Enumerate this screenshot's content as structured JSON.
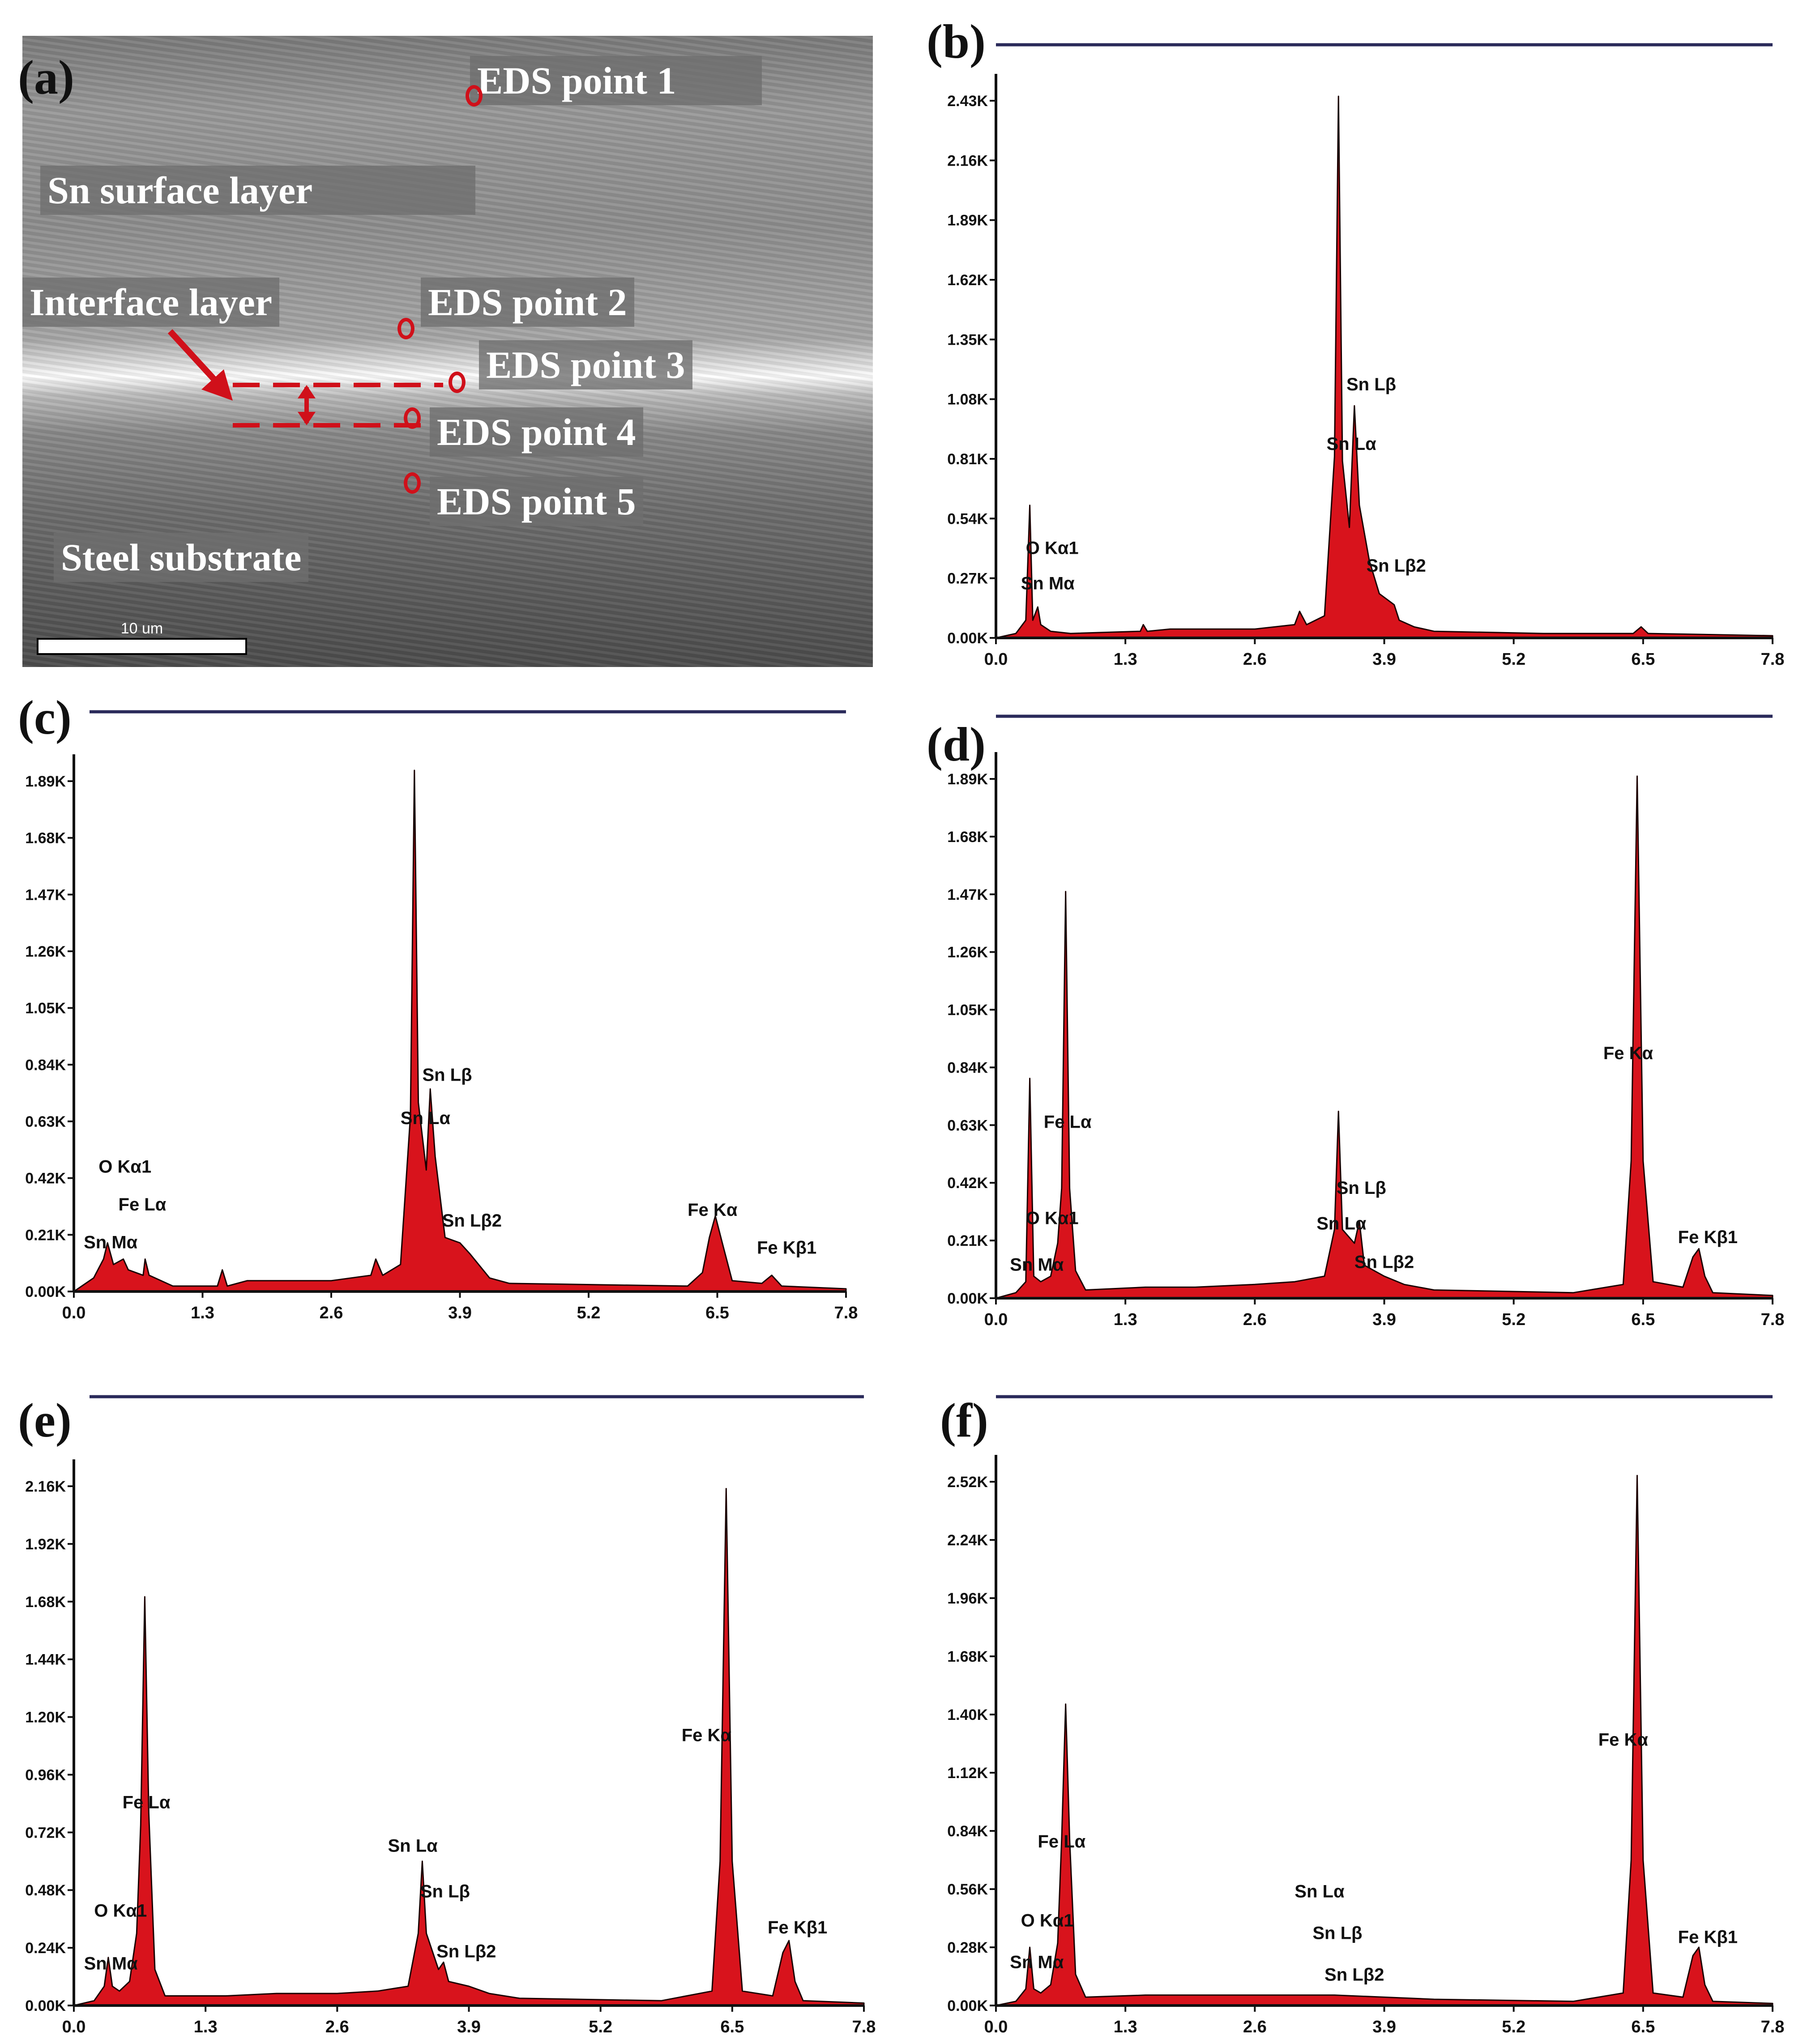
{
  "panels": {
    "a": {
      "letter": "(a)"
    },
    "b": {
      "letter": "(b)"
    },
    "c": {
      "letter": "(c)"
    },
    "d": {
      "letter": "(d)"
    },
    "e": {
      "letter": "(e)"
    },
    "f": {
      "letter": "(f)"
    }
  },
  "sem": {
    "labels": {
      "sn_surface": "Sn surface layer",
      "interface": "Interface layer",
      "steel": "Steel substrate",
      "p1": "EDS point 1",
      "p2": "EDS point 2",
      "p3": "EDS point 3",
      "p4": "EDS point 4",
      "p5": "EDS point 5"
    },
    "scale_bar": "10 um"
  },
  "colors": {
    "fill": "#d8131c",
    "stroke": "#1a0000",
    "peak_marker": "#f4b6b6",
    "rule": "#2a2a5a"
  },
  "chart_data": [
    {
      "panel": "b",
      "type": "area",
      "x_ticks": [
        "0.0",
        "1.3",
        "2.6",
        "3.9",
        "5.2",
        "6.5",
        "7.8"
      ],
      "y_ticks": [
        "0.00K",
        "0.27K",
        "0.54K",
        "0.81K",
        "1.08K",
        "1.35K",
        "1.62K",
        "1.89K",
        "2.16K",
        "2.43K"
      ],
      "xlim": [
        0,
        7.8
      ],
      "ylim": [
        0,
        2.43
      ],
      "spectrum": [
        [
          0,
          0
        ],
        [
          0.2,
          0.02
        ],
        [
          0.3,
          0.08
        ],
        [
          0.34,
          0.6
        ],
        [
          0.37,
          0.08
        ],
        [
          0.42,
          0.14
        ],
        [
          0.45,
          0.06
        ],
        [
          0.55,
          0.03
        ],
        [
          0.75,
          0.02
        ],
        [
          1.45,
          0.03
        ],
        [
          1.48,
          0.06
        ],
        [
          1.52,
          0.03
        ],
        [
          1.75,
          0.04
        ],
        [
          2.6,
          0.04
        ],
        [
          3.0,
          0.06
        ],
        [
          3.05,
          0.12
        ],
        [
          3.12,
          0.06
        ],
        [
          3.3,
          0.1
        ],
        [
          3.4,
          0.82
        ],
        [
          3.44,
          2.45
        ],
        [
          3.48,
          0.8
        ],
        [
          3.55,
          0.5
        ],
        [
          3.6,
          1.05
        ],
        [
          3.65,
          0.6
        ],
        [
          3.75,
          0.35
        ],
        [
          3.85,
          0.2
        ],
        [
          4.0,
          0.15
        ],
        [
          4.05,
          0.08
        ],
        [
          4.2,
          0.05
        ],
        [
          4.4,
          0.03
        ],
        [
          5.5,
          0.02
        ],
        [
          6.4,
          0.02
        ],
        [
          6.48,
          0.05
        ],
        [
          6.55,
          0.02
        ],
        [
          7.8,
          0.01
        ]
      ],
      "peak_labels": [
        {
          "text": "O  Kα1",
          "x": 0.3,
          "y": 0.38
        },
        {
          "text": "Sn Mα",
          "x": 0.25,
          "y": 0.22
        },
        {
          "text": "Sn Lβ",
          "x": 3.52,
          "y": 1.12
        },
        {
          "text": "Sn Lα",
          "x": 3.32,
          "y": 0.85
        },
        {
          "text": "Sn Lβ2",
          "x": 3.72,
          "y": 0.3
        }
      ]
    },
    {
      "panel": "c",
      "type": "area",
      "x_ticks": [
        "0.0",
        "1.3",
        "2.6",
        "3.9",
        "5.2",
        "6.5",
        "7.8"
      ],
      "y_ticks": [
        "0.00K",
        "0.21K",
        "0.42K",
        "0.63K",
        "0.84K",
        "1.05K",
        "1.26K",
        "1.47K",
        "1.68K",
        "1.89K"
      ],
      "xlim": [
        0,
        7.8
      ],
      "ylim": [
        0,
        1.89
      ],
      "spectrum": [
        [
          0,
          0
        ],
        [
          0.2,
          0.05
        ],
        [
          0.3,
          0.12
        ],
        [
          0.34,
          0.18
        ],
        [
          0.4,
          0.1
        ],
        [
          0.5,
          0.12
        ],
        [
          0.55,
          0.08
        ],
        [
          0.7,
          0.06
        ],
        [
          0.72,
          0.12
        ],
        [
          0.76,
          0.06
        ],
        [
          1.0,
          0.02
        ],
        [
          1.45,
          0.02
        ],
        [
          1.5,
          0.08
        ],
        [
          1.55,
          0.02
        ],
        [
          1.75,
          0.04
        ],
        [
          2.6,
          0.04
        ],
        [
          3.0,
          0.06
        ],
        [
          3.05,
          0.12
        ],
        [
          3.12,
          0.06
        ],
        [
          3.3,
          0.1
        ],
        [
          3.4,
          0.65
        ],
        [
          3.44,
          1.93
        ],
        [
          3.48,
          0.7
        ],
        [
          3.56,
          0.45
        ],
        [
          3.6,
          0.75
        ],
        [
          3.65,
          0.5
        ],
        [
          3.75,
          0.2
        ],
        [
          3.9,
          0.18
        ],
        [
          4.0,
          0.14
        ],
        [
          4.2,
          0.05
        ],
        [
          4.4,
          0.03
        ],
        [
          6.2,
          0.02
        ],
        [
          6.35,
          0.07
        ],
        [
          6.42,
          0.2
        ],
        [
          6.48,
          0.28
        ],
        [
          6.55,
          0.18
        ],
        [
          6.65,
          0.04
        ],
        [
          6.95,
          0.03
        ],
        [
          7.05,
          0.06
        ],
        [
          7.15,
          0.02
        ],
        [
          7.8,
          0.01
        ]
      ],
      "peak_labels": [
        {
          "text": "O  Kα1",
          "x": 0.25,
          "y": 0.44
        },
        {
          "text": "Fe Lα",
          "x": 0.45,
          "y": 0.3
        },
        {
          "text": "Sn Mα",
          "x": 0.1,
          "y": 0.16
        },
        {
          "text": "Sn Lβ",
          "x": 3.52,
          "y": 0.78
        },
        {
          "text": "Sn Lα",
          "x": 3.3,
          "y": 0.62
        },
        {
          "text": "Sn Lβ2",
          "x": 3.72,
          "y": 0.24
        },
        {
          "text": "Fe Kα",
          "x": 6.2,
          "y": 0.28
        },
        {
          "text": "Fe Kβ1",
          "x": 6.9,
          "y": 0.14
        }
      ]
    },
    {
      "panel": "d",
      "type": "area",
      "x_ticks": [
        "0.0",
        "1.3",
        "2.6",
        "3.9",
        "5.2",
        "6.5",
        "7.8"
      ],
      "y_ticks": [
        "0.00K",
        "0.21K",
        "0.42K",
        "0.63K",
        "0.84K",
        "1.05K",
        "1.26K",
        "1.47K",
        "1.68K",
        "1.89K"
      ],
      "xlim": [
        0,
        7.8
      ],
      "ylim": [
        0,
        1.89
      ],
      "spectrum": [
        [
          0,
          0
        ],
        [
          0.2,
          0.02
        ],
        [
          0.3,
          0.06
        ],
        [
          0.34,
          0.8
        ],
        [
          0.38,
          0.08
        ],
        [
          0.45,
          0.06
        ],
        [
          0.55,
          0.08
        ],
        [
          0.62,
          0.2
        ],
        [
          0.66,
          0.4
        ],
        [
          0.7,
          1.48
        ],
        [
          0.74,
          0.4
        ],
        [
          0.8,
          0.1
        ],
        [
          0.9,
          0.03
        ],
        [
          1.5,
          0.04
        ],
        [
          2.0,
          0.04
        ],
        [
          2.6,
          0.05
        ],
        [
          3.0,
          0.06
        ],
        [
          3.3,
          0.08
        ],
        [
          3.4,
          0.25
        ],
        [
          3.44,
          0.68
        ],
        [
          3.48,
          0.25
        ],
        [
          3.6,
          0.2
        ],
        [
          3.65,
          0.28
        ],
        [
          3.7,
          0.12
        ],
        [
          3.9,
          0.08
        ],
        [
          4.1,
          0.05
        ],
        [
          4.4,
          0.03
        ],
        [
          5.8,
          0.02
        ],
        [
          6.3,
          0.05
        ],
        [
          6.38,
          0.5
        ],
        [
          6.44,
          1.9
        ],
        [
          6.5,
          0.5
        ],
        [
          6.6,
          0.06
        ],
        [
          6.9,
          0.04
        ],
        [
          7.0,
          0.15
        ],
        [
          7.06,
          0.18
        ],
        [
          7.12,
          0.08
        ],
        [
          7.2,
          0.02
        ],
        [
          7.8,
          0.01
        ]
      ],
      "peak_labels": [
        {
          "text": "Fe Lα",
          "x": 0.48,
          "y": 0.62
        },
        {
          "text": "O  Kα1",
          "x": 0.3,
          "y": 0.27
        },
        {
          "text": "Sn Mα",
          "x": 0.14,
          "y": 0.1
        },
        {
          "text": "Sn Lβ",
          "x": 3.42,
          "y": 0.38
        },
        {
          "text": "Sn Lα",
          "x": 3.22,
          "y": 0.25
        },
        {
          "text": "Sn Lβ2",
          "x": 3.6,
          "y": 0.11
        },
        {
          "text": "Fe Kα",
          "x": 6.1,
          "y": 0.87
        },
        {
          "text": "Fe Kβ1",
          "x": 6.85,
          "y": 0.2
        }
      ]
    },
    {
      "panel": "e",
      "type": "area",
      "x_ticks": [
        "0.0",
        "1.3",
        "2.6",
        "3.9",
        "5.2",
        "6.5",
        "7.8"
      ],
      "y_ticks": [
        "0.00K",
        "0.24K",
        "0.48K",
        "0.72K",
        "0.96K",
        "1.20K",
        "1.44K",
        "1.68K",
        "1.92K",
        "2.16K"
      ],
      "xlim": [
        0,
        7.8
      ],
      "ylim": [
        0,
        2.16
      ],
      "spectrum": [
        [
          0,
          0
        ],
        [
          0.2,
          0.02
        ],
        [
          0.3,
          0.08
        ],
        [
          0.34,
          0.2
        ],
        [
          0.38,
          0.08
        ],
        [
          0.45,
          0.06
        ],
        [
          0.55,
          0.1
        ],
        [
          0.62,
          0.3
        ],
        [
          0.66,
          0.75
        ],
        [
          0.7,
          1.7
        ],
        [
          0.74,
          0.8
        ],
        [
          0.8,
          0.15
        ],
        [
          0.9,
          0.04
        ],
        [
          1.5,
          0.04
        ],
        [
          2.0,
          0.05
        ],
        [
          2.6,
          0.05
        ],
        [
          3.0,
          0.06
        ],
        [
          3.3,
          0.08
        ],
        [
          3.4,
          0.3
        ],
        [
          3.44,
          0.6
        ],
        [
          3.48,
          0.3
        ],
        [
          3.6,
          0.15
        ],
        [
          3.65,
          0.18
        ],
        [
          3.7,
          0.1
        ],
        [
          3.9,
          0.08
        ],
        [
          4.1,
          0.05
        ],
        [
          4.4,
          0.03
        ],
        [
          5.8,
          0.02
        ],
        [
          6.3,
          0.06
        ],
        [
          6.38,
          0.6
        ],
        [
          6.44,
          2.15
        ],
        [
          6.5,
          0.6
        ],
        [
          6.6,
          0.06
        ],
        [
          6.9,
          0.04
        ],
        [
          7.0,
          0.22
        ],
        [
          7.06,
          0.27
        ],
        [
          7.12,
          0.1
        ],
        [
          7.2,
          0.02
        ],
        [
          7.8,
          0.01
        ]
      ],
      "peak_labels": [
        {
          "text": "Fe Lα",
          "x": 0.48,
          "y": 0.82
        },
        {
          "text": "O  Kα1",
          "x": 0.2,
          "y": 0.37
        },
        {
          "text": "Sn Mα",
          "x": 0.1,
          "y": 0.15
        },
        {
          "text": "Sn Lα",
          "x": 3.1,
          "y": 0.64
        },
        {
          "text": "Sn Lβ",
          "x": 3.42,
          "y": 0.45
        },
        {
          "text": "Sn Lβ2",
          "x": 3.58,
          "y": 0.2
        },
        {
          "text": "Fe Kα",
          "x": 6.0,
          "y": 1.1
        },
        {
          "text": "Fe Kβ1",
          "x": 6.85,
          "y": 0.3
        }
      ]
    },
    {
      "panel": "f",
      "type": "area",
      "x_ticks": [
        "0.0",
        "1.3",
        "2.6",
        "3.9",
        "5.2",
        "6.5",
        "7.8"
      ],
      "y_ticks": [
        "0.00K",
        "0.28K",
        "0.56K",
        "0.84K",
        "1.12K",
        "1.40K",
        "1.68K",
        "1.96K",
        "2.24K",
        "2.52K"
      ],
      "xlim": [
        0,
        7.8
      ],
      "ylim": [
        0,
        2.52
      ],
      "spectrum": [
        [
          0,
          0
        ],
        [
          0.2,
          0.02
        ],
        [
          0.3,
          0.08
        ],
        [
          0.34,
          0.28
        ],
        [
          0.38,
          0.08
        ],
        [
          0.45,
          0.06
        ],
        [
          0.55,
          0.1
        ],
        [
          0.62,
          0.3
        ],
        [
          0.66,
          0.8
        ],
        [
          0.7,
          1.45
        ],
        [
          0.74,
          0.8
        ],
        [
          0.8,
          0.15
        ],
        [
          0.9,
          0.04
        ],
        [
          1.5,
          0.05
        ],
        [
          2.5,
          0.05
        ],
        [
          3.4,
          0.05
        ],
        [
          3.9,
          0.04
        ],
        [
          4.4,
          0.03
        ],
        [
          5.8,
          0.02
        ],
        [
          6.3,
          0.06
        ],
        [
          6.38,
          0.7
        ],
        [
          6.44,
          2.55
        ],
        [
          6.5,
          0.7
        ],
        [
          6.6,
          0.06
        ],
        [
          6.9,
          0.04
        ],
        [
          7.0,
          0.24
        ],
        [
          7.06,
          0.28
        ],
        [
          7.12,
          0.1
        ],
        [
          7.2,
          0.02
        ],
        [
          7.8,
          0.01
        ]
      ],
      "peak_labels": [
        {
          "text": "Fe Lα",
          "x": 0.42,
          "y": 0.76
        },
        {
          "text": "O  Kα1",
          "x": 0.25,
          "y": 0.38
        },
        {
          "text": "Sn Mα",
          "x": 0.14,
          "y": 0.18
        },
        {
          "text": "Sn Lα",
          "x": 3.0,
          "y": 0.52
        },
        {
          "text": "Sn Lβ",
          "x": 3.18,
          "y": 0.32
        },
        {
          "text": "Sn Lβ2",
          "x": 3.3,
          "y": 0.12
        },
        {
          "text": "Fe Kα",
          "x": 6.05,
          "y": 1.25
        },
        {
          "text": "Fe Kβ1",
          "x": 6.85,
          "y": 0.3
        }
      ]
    }
  ]
}
